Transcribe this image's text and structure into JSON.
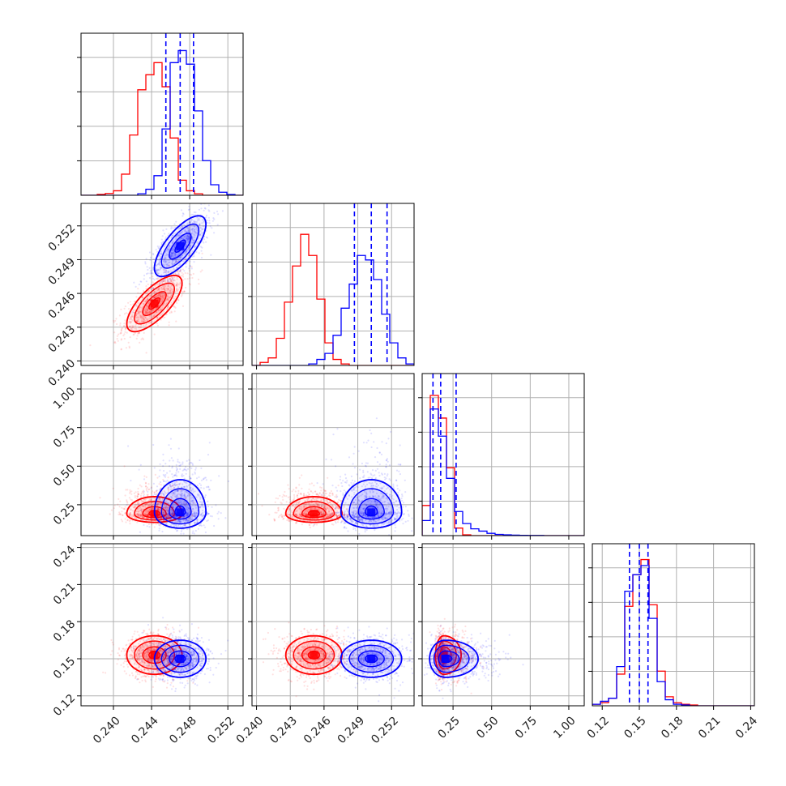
{
  "chart_data": {
    "type": "corner",
    "grid": true,
    "colors": {
      "series_a": "#ff0000",
      "series_b": "#0000ff"
    },
    "series": [
      {
        "color": "#ff0000",
        "mean": [
          0.2443,
          0.2451,
          0.19,
          0.153
        ],
        "std": [
          0.00145,
          0.00125,
          0.045,
          0.0078
        ],
        "corr_01": 0.72
      },
      {
        "color": "#0000ff",
        "mean": [
          0.247,
          0.2502,
          0.2,
          0.15
        ],
        "std": [
          0.00135,
          0.00135,
          0.085,
          0.0075
        ],
        "corr_01": 0.72
      }
    ],
    "quantile_lines": {
      "color": "#0000ff",
      "values": [
        [
          0.2455,
          0.247,
          0.2484
        ],
        [
          0.2487,
          0.2502,
          0.2516
        ],
        [
          0.12,
          0.17,
          0.27
        ],
        [
          0.142,
          0.15,
          0.157
        ]
      ]
    },
    "variables": [
      {
        "range": [
          0.2366,
          0.2536
        ],
        "ticks": [
          0.24,
          0.244,
          0.248,
          0.252
        ],
        "tick_labels": [
          "0.240",
          "0.244",
          "0.248",
          "0.252"
        ]
      },
      {
        "range": [
          0.2396,
          0.254
        ],
        "ticks": [
          0.24,
          0.243,
          0.246,
          0.249,
          0.252
        ],
        "tick_labels": [
          "0.240",
          "0.243",
          "0.246",
          "0.249",
          "0.252"
        ]
      },
      {
        "range": [
          0.05,
          1.1
        ],
        "ticks": [
          0.25,
          0.5,
          0.75,
          1.0
        ],
        "tick_labels": [
          "0.25",
          "0.50",
          "0.75",
          "1.00"
        ]
      },
      {
        "range": [
          0.112,
          0.243
        ],
        "ticks": [
          0.12,
          0.15,
          0.18,
          0.21,
          0.24
        ],
        "tick_labels": [
          "0.12",
          "0.15",
          "0.18",
          "0.21",
          "0.24"
        ]
      }
    ],
    "histograms": [
      {
        "bin_edges": [
          0.2366,
          0.23745,
          0.2383,
          0.23915,
          0.24,
          0.24085,
          0.2417,
          0.24255,
          0.2434,
          0.24425,
          0.2451,
          0.24595,
          0.2468,
          0.24765,
          0.2485,
          0.24935,
          0.2502,
          0.25105,
          0.2519,
          0.25275,
          0.2536
        ],
        "red": [
          0,
          0,
          0.006,
          0.012,
          0.03,
          0.14,
          0.4,
          0.7,
          0.8,
          0.88,
          0.72,
          0.38,
          0.1,
          0.03,
          0.01,
          0,
          0,
          0,
          0,
          0
        ],
        "blue": [
          0,
          0,
          0,
          0,
          0,
          0,
          0,
          0.01,
          0.04,
          0.13,
          0.44,
          0.88,
          0.96,
          0.87,
          0.56,
          0.23,
          0.07,
          0.02,
          0.005,
          0
        ]
      },
      {
        "bin_edges": [
          0.2396,
          0.24032,
          0.24104,
          0.24176,
          0.24248,
          0.2432,
          0.24392,
          0.24464,
          0.24536,
          0.24608,
          0.2468,
          0.24752,
          0.24824,
          0.24896,
          0.24968,
          0.2504,
          0.25112,
          0.25184,
          0.25256,
          0.25328,
          0.254
        ],
        "red": [
          0,
          0.02,
          0.05,
          0.18,
          0.42,
          0.66,
          0.87,
          0.73,
          0.44,
          0.15,
          0.04,
          0.01,
          0,
          0,
          0,
          0,
          0,
          0,
          0,
          0
        ],
        "blue": [
          0,
          0,
          0,
          0,
          0,
          0,
          0,
          0.01,
          0.04,
          0.08,
          0.2,
          0.38,
          0.54,
          0.73,
          0.7,
          0.57,
          0.34,
          0.15,
          0.05,
          0.01
        ]
      },
      {
        "bin_edges": [
          0.05,
          0.1025,
          0.155,
          0.2075,
          0.26,
          0.3125,
          0.365,
          0.4175,
          0.47,
          0.5225,
          0.575,
          0.6275,
          0.68,
          0.7325,
          0.785,
          0.8375,
          0.89,
          0.9425,
          0.995,
          1.0475,
          1.1
        ],
        "red": [
          0.2,
          0.93,
          0.78,
          0.45,
          0.05,
          0.005,
          0,
          0,
          0,
          0,
          0,
          0,
          0,
          0,
          0,
          0,
          0,
          0,
          0,
          0
        ],
        "blue": [
          0.1,
          0.84,
          0.66,
          0.38,
          0.16,
          0.08,
          0.045,
          0.03,
          0.015,
          0.008,
          0.005,
          0.003,
          0.002,
          0.001,
          0.001,
          0,
          0,
          0,
          0,
          0
        ]
      },
      {
        "bin_edges": [
          0.112,
          0.11855,
          0.1251,
          0.13165,
          0.1382,
          0.14475,
          0.1513,
          0.15785,
          0.1644,
          0.17095,
          0.1775,
          0.18405,
          0.1906,
          0.19715,
          0.2037,
          0.21025,
          0.2168,
          0.22335,
          0.2299,
          0.23645,
          0.243
        ],
        "red": [
          0.01,
          0.02,
          0.05,
          0.21,
          0.66,
          0.87,
          0.97,
          0.67,
          0.23,
          0.06,
          0.02,
          0.01,
          0.005,
          0,
          0,
          0,
          0,
          0,
          0,
          0
        ],
        "blue": [
          0.01,
          0.03,
          0.05,
          0.26,
          0.76,
          0.87,
          0.93,
          0.58,
          0.16,
          0.04,
          0.01,
          0.005,
          0,
          0,
          0,
          0,
          0,
          0,
          0,
          0
        ]
      }
    ]
  }
}
